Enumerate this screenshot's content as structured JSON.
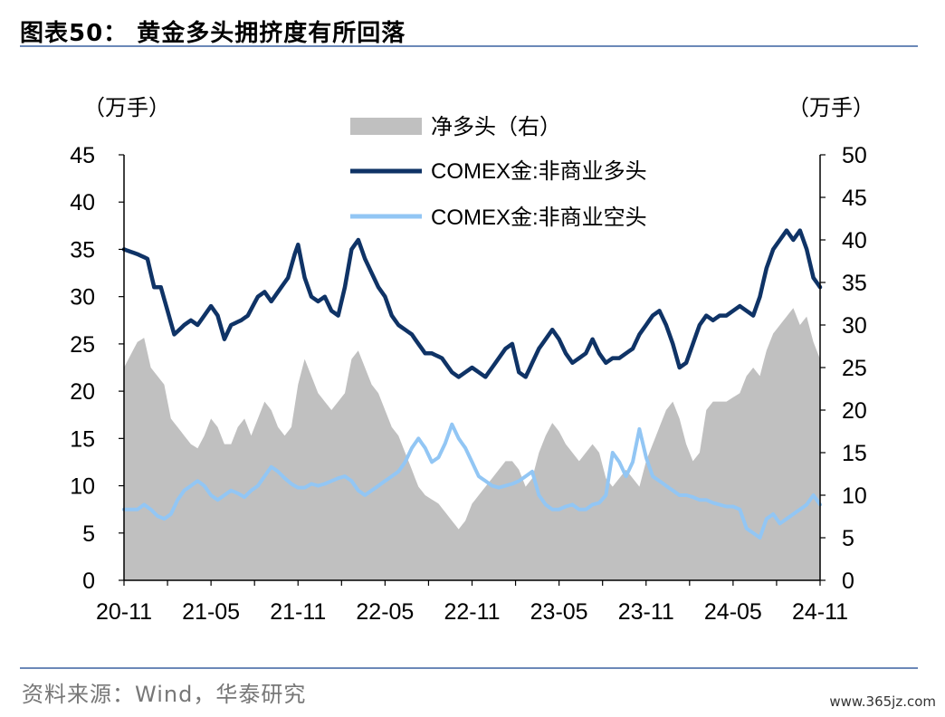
{
  "figure": {
    "title": "图表50：   黄金多头拥挤度有所回落",
    "source": "资料来源：Wind，华泰研究",
    "watermark": "www.365jz.com"
  },
  "chart_data": {
    "type": "line",
    "left_unit": "（万手）",
    "right_unit": "（万手）",
    "left_ylim": [
      0,
      45
    ],
    "right_ylim": [
      0,
      50
    ],
    "left_ticks": [
      "0",
      "5",
      "10",
      "15",
      "20",
      "25",
      "30",
      "35",
      "40",
      "45"
    ],
    "right_ticks": [
      "0",
      "5",
      "10",
      "15",
      "20",
      "25",
      "30",
      "35",
      "40",
      "45",
      "50"
    ],
    "x_tick_labels": [
      "20-11",
      "21-05",
      "21-11",
      "22-05",
      "22-11",
      "23-05",
      "23-11",
      "24-05",
      "24-11"
    ],
    "x_tick_index": [
      0,
      26,
      52,
      78,
      104,
      130,
      156,
      182,
      208
    ],
    "legend": {
      "net_long": "净多头（右）",
      "long": "COMEX金:非商业多头",
      "short": "COMEX金:非商业空头"
    },
    "colors": {
      "net_long": "#c0c0c0",
      "long": "#0f3366",
      "short": "#92c6f4"
    },
    "series": [
      {
        "key": "long",
        "name": "COMEX金:非商业多头",
        "axis": "left",
        "kind": "line",
        "anchors": [
          [
            0,
            35
          ],
          [
            4,
            34.5
          ],
          [
            7,
            34
          ],
          [
            9,
            31
          ],
          [
            11,
            31
          ],
          [
            13,
            28.5
          ],
          [
            15,
            26
          ],
          [
            18,
            27
          ],
          [
            20,
            27.5
          ],
          [
            22,
            27
          ],
          [
            24,
            28
          ],
          [
            26,
            29
          ],
          [
            28,
            28
          ],
          [
            30,
            25.5
          ],
          [
            32,
            27
          ],
          [
            35,
            27.5
          ],
          [
            37,
            28
          ],
          [
            40,
            30
          ],
          [
            42,
            30.5
          ],
          [
            44,
            29.5
          ],
          [
            47,
            31
          ],
          [
            49,
            32
          ],
          [
            51,
            34.5
          ],
          [
            52,
            35.5
          ],
          [
            54,
            32
          ],
          [
            56,
            30
          ],
          [
            58,
            29.5
          ],
          [
            60,
            30
          ],
          [
            62,
            28.5
          ],
          [
            64,
            28
          ],
          [
            66,
            31
          ],
          [
            68,
            35
          ],
          [
            70,
            36
          ],
          [
            72,
            34
          ],
          [
            74,
            32.5
          ],
          [
            76,
            31
          ],
          [
            78,
            30
          ],
          [
            80,
            28
          ],
          [
            82,
            27
          ],
          [
            84,
            26.5
          ],
          [
            86,
            26
          ],
          [
            88,
            25
          ],
          [
            90,
            24
          ],
          [
            92,
            24
          ],
          [
            95,
            23.5
          ],
          [
            98,
            22
          ],
          [
            100,
            21.5
          ],
          [
            102,
            22
          ],
          [
            104,
            22.5
          ],
          [
            106,
            22
          ],
          [
            108,
            21.5
          ],
          [
            110,
            22.5
          ],
          [
            112,
            23.5
          ],
          [
            114,
            24.5
          ],
          [
            116,
            25
          ],
          [
            118,
            22
          ],
          [
            120,
            21.5
          ],
          [
            122,
            23
          ],
          [
            124,
            24.5
          ],
          [
            126,
            25.5
          ],
          [
            128,
            26.5
          ],
          [
            130,
            25.5
          ],
          [
            132,
            24
          ],
          [
            134,
            23
          ],
          [
            136,
            23.5
          ],
          [
            138,
            24
          ],
          [
            140,
            25.5
          ],
          [
            142,
            24
          ],
          [
            144,
            23
          ],
          [
            146,
            23.5
          ],
          [
            148,
            23.5
          ],
          [
            150,
            24
          ],
          [
            152,
            24.5
          ],
          [
            154,
            26
          ],
          [
            156,
            27
          ],
          [
            158,
            28
          ],
          [
            160,
            28.5
          ],
          [
            162,
            27
          ],
          [
            164,
            25
          ],
          [
            166,
            22.5
          ],
          [
            168,
            23
          ],
          [
            170,
            25
          ],
          [
            172,
            27
          ],
          [
            174,
            28
          ],
          [
            176,
            27.5
          ],
          [
            178,
            28
          ],
          [
            180,
            28
          ],
          [
            182,
            28.5
          ],
          [
            184,
            29
          ],
          [
            186,
            28.5
          ],
          [
            188,
            28
          ],
          [
            190,
            30
          ],
          [
            192,
            33
          ],
          [
            194,
            35
          ],
          [
            196,
            36
          ],
          [
            198,
            37
          ],
          [
            200,
            36
          ],
          [
            202,
            37
          ],
          [
            204,
            35
          ],
          [
            206,
            32
          ],
          [
            208,
            31
          ]
        ]
      },
      {
        "key": "short",
        "name": "COMEX金:非商业空头",
        "axis": "left",
        "kind": "line",
        "anchors": [
          [
            0,
            7.5
          ],
          [
            4,
            7.5
          ],
          [
            6,
            8
          ],
          [
            8,
            7.5
          ],
          [
            10,
            6.8
          ],
          [
            12,
            6.5
          ],
          [
            14,
            7
          ],
          [
            16,
            8.5
          ],
          [
            18,
            9.5
          ],
          [
            20,
            10
          ],
          [
            22,
            10.5
          ],
          [
            24,
            10
          ],
          [
            26,
            9
          ],
          [
            28,
            8.5
          ],
          [
            30,
            9
          ],
          [
            32,
            9.5
          ],
          [
            34,
            9.2
          ],
          [
            36,
            8.8
          ],
          [
            38,
            9.5
          ],
          [
            40,
            10
          ],
          [
            42,
            11
          ],
          [
            44,
            12
          ],
          [
            46,
            11.5
          ],
          [
            48,
            10.8
          ],
          [
            50,
            10.2
          ],
          [
            52,
            9.8
          ],
          [
            54,
            9.8
          ],
          [
            56,
            10.2
          ],
          [
            58,
            10
          ],
          [
            60,
            10.2
          ],
          [
            62,
            10.5
          ],
          [
            64,
            10.8
          ],
          [
            66,
            11
          ],
          [
            68,
            10.5
          ],
          [
            70,
            9.5
          ],
          [
            72,
            9
          ],
          [
            74,
            9.5
          ],
          [
            76,
            10
          ],
          [
            78,
            10.5
          ],
          [
            80,
            11
          ],
          [
            82,
            11.5
          ],
          [
            84,
            12.5
          ],
          [
            86,
            14
          ],
          [
            88,
            15
          ],
          [
            90,
            14
          ],
          [
            92,
            12.5
          ],
          [
            94,
            13
          ],
          [
            96,
            14.5
          ],
          [
            98,
            16.5
          ],
          [
            100,
            15
          ],
          [
            102,
            14
          ],
          [
            104,
            12.5
          ],
          [
            106,
            11
          ],
          [
            108,
            10.5
          ],
          [
            110,
            10
          ],
          [
            112,
            9.8
          ],
          [
            114,
            10
          ],
          [
            116,
            10.2
          ],
          [
            118,
            10.5
          ],
          [
            120,
            11
          ],
          [
            122,
            11.5
          ],
          [
            124,
            9
          ],
          [
            126,
            8
          ],
          [
            128,
            7.5
          ],
          [
            130,
            7.5
          ],
          [
            132,
            7.8
          ],
          [
            134,
            8
          ],
          [
            136,
            7.5
          ],
          [
            138,
            7.5
          ],
          [
            140,
            8
          ],
          [
            142,
            8.2
          ],
          [
            144,
            9
          ],
          [
            146,
            13.5
          ],
          [
            148,
            12.5
          ],
          [
            150,
            11
          ],
          [
            152,
            12.5
          ],
          [
            154,
            16
          ],
          [
            156,
            13
          ],
          [
            158,
            11
          ],
          [
            160,
            10.5
          ],
          [
            162,
            10
          ],
          [
            164,
            9.5
          ],
          [
            166,
            9
          ],
          [
            168,
            9
          ],
          [
            170,
            8.8
          ],
          [
            172,
            8.5
          ],
          [
            174,
            8.5
          ],
          [
            176,
            8.2
          ],
          [
            178,
            8
          ],
          [
            180,
            7.8
          ],
          [
            182,
            7.8
          ],
          [
            184,
            7.5
          ],
          [
            186,
            5.5
          ],
          [
            188,
            5
          ],
          [
            190,
            4.5
          ],
          [
            192,
            6.5
          ],
          [
            194,
            7
          ],
          [
            196,
            6
          ],
          [
            198,
            6.5
          ],
          [
            200,
            7
          ],
          [
            202,
            7.5
          ],
          [
            204,
            8
          ],
          [
            206,
            9
          ],
          [
            208,
            8
          ]
        ]
      },
      {
        "key": "net_long",
        "name": "净多头（右）",
        "axis": "right",
        "kind": "area",
        "anchors": [
          [
            0,
            25
          ],
          [
            4,
            28
          ],
          [
            6,
            28.5
          ],
          [
            8,
            25
          ],
          [
            10,
            24
          ],
          [
            12,
            23
          ],
          [
            14,
            19
          ],
          [
            16,
            18
          ],
          [
            18,
            17
          ],
          [
            20,
            16
          ],
          [
            22,
            15.5
          ],
          [
            24,
            17
          ],
          [
            26,
            19
          ],
          [
            28,
            18
          ],
          [
            30,
            16
          ],
          [
            32,
            16
          ],
          [
            34,
            18
          ],
          [
            36,
            19
          ],
          [
            38,
            17
          ],
          [
            40,
            19
          ],
          [
            42,
            21
          ],
          [
            44,
            20
          ],
          [
            46,
            18
          ],
          [
            48,
            17
          ],
          [
            50,
            18
          ],
          [
            52,
            23
          ],
          [
            54,
            26
          ],
          [
            56,
            24
          ],
          [
            58,
            22
          ],
          [
            60,
            21
          ],
          [
            62,
            20
          ],
          [
            64,
            21
          ],
          [
            66,
            22
          ],
          [
            68,
            26
          ],
          [
            70,
            27
          ],
          [
            72,
            25
          ],
          [
            74,
            23
          ],
          [
            76,
            22
          ],
          [
            78,
            20
          ],
          [
            80,
            18
          ],
          [
            82,
            17
          ],
          [
            84,
            15
          ],
          [
            86,
            13
          ],
          [
            88,
            11
          ],
          [
            90,
            10
          ],
          [
            92,
            9.5
          ],
          [
            94,
            9
          ],
          [
            96,
            8
          ],
          [
            98,
            7
          ],
          [
            100,
            6
          ],
          [
            102,
            7
          ],
          [
            104,
            9
          ],
          [
            106,
            10
          ],
          [
            108,
            11
          ],
          [
            110,
            12
          ],
          [
            112,
            13
          ],
          [
            114,
            14
          ],
          [
            116,
            14
          ],
          [
            118,
            13
          ],
          [
            120,
            11
          ],
          [
            122,
            12
          ],
          [
            124,
            15
          ],
          [
            126,
            17
          ],
          [
            128,
            18.5
          ],
          [
            130,
            17.5
          ],
          [
            132,
            16
          ],
          [
            134,
            15
          ],
          [
            136,
            14
          ],
          [
            138,
            15
          ],
          [
            140,
            16
          ],
          [
            142,
            15
          ],
          [
            144,
            12
          ],
          [
            146,
            11
          ],
          [
            148,
            12
          ],
          [
            150,
            13
          ],
          [
            152,
            12
          ],
          [
            154,
            11
          ],
          [
            156,
            14
          ],
          [
            158,
            16
          ],
          [
            160,
            18
          ],
          [
            162,
            20
          ],
          [
            164,
            21
          ],
          [
            166,
            19
          ],
          [
            168,
            16
          ],
          [
            170,
            14
          ],
          [
            172,
            15
          ],
          [
            174,
            20
          ],
          [
            176,
            21
          ],
          [
            178,
            21
          ],
          [
            180,
            21
          ],
          [
            182,
            21.5
          ],
          [
            184,
            22
          ],
          [
            186,
            24
          ],
          [
            188,
            25
          ],
          [
            190,
            24
          ],
          [
            192,
            27
          ],
          [
            194,
            29
          ],
          [
            196,
            30
          ],
          [
            198,
            31
          ],
          [
            200,
            32
          ],
          [
            202,
            30
          ],
          [
            204,
            31
          ],
          [
            206,
            28
          ],
          [
            208,
            26
          ]
        ]
      }
    ]
  }
}
